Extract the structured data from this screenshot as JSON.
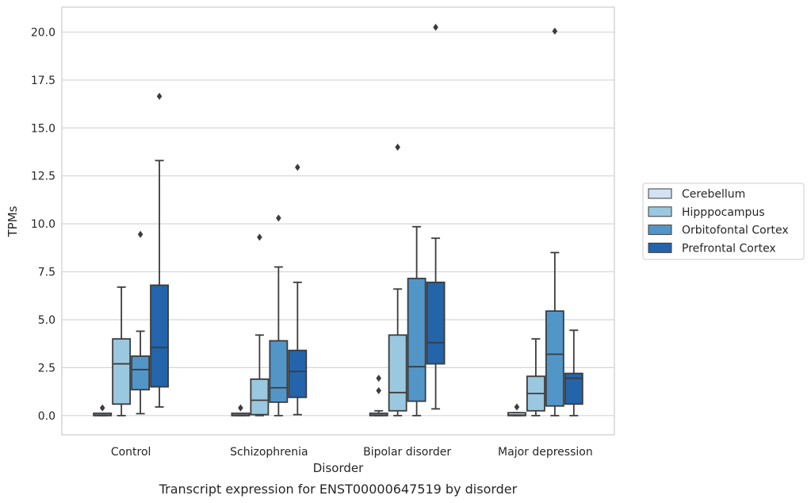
{
  "chart_data": {
    "type": "box",
    "caption": "Transcript expression for ENST00000647519 by disorder",
    "xlabel": "Disorder",
    "ylabel": "TPMs",
    "categories": [
      "Control",
      "Schizophrenia",
      "Bipolar disorder",
      "Major depression"
    ],
    "yticks": [
      "0.0",
      "2.5",
      "5.0",
      "7.5",
      "10.0",
      "12.5",
      "15.0",
      "17.5",
      "20.0"
    ],
    "ylim": [
      -1,
      21.3
    ],
    "grid": "horizontal",
    "legend_position": "right",
    "series": [
      {
        "name": "Cerebellum",
        "color": "#d1e2f2",
        "boxes": [
          {
            "whislo": 0.0,
            "q1": 0.0,
            "med": 0.03,
            "q3": 0.12,
            "whishi": 0.12,
            "fliers": [
              0.4
            ]
          },
          {
            "whislo": 0.0,
            "q1": 0.0,
            "med": 0.03,
            "q3": 0.12,
            "whishi": 0.12,
            "fliers": [
              0.4
            ]
          },
          {
            "whislo": 0.0,
            "q1": 0.0,
            "med": 0.03,
            "q3": 0.12,
            "whishi": 0.25,
            "fliers": [
              1.3,
              1.95
            ]
          },
          {
            "whislo": 0.0,
            "q1": 0.0,
            "med": 0.03,
            "q3": 0.15,
            "whishi": 0.15,
            "fliers": [
              0.45
            ]
          }
        ]
      },
      {
        "name": "Hipppocampus",
        "color": "#9ac8e0",
        "boxes": [
          {
            "whislo": 0.0,
            "q1": 0.6,
            "med": 2.7,
            "q3": 4.0,
            "whishi": 6.7,
            "fliers": []
          },
          {
            "whislo": 0.0,
            "q1": 0.05,
            "med": 0.8,
            "q3": 1.9,
            "whishi": 4.2,
            "fliers": [
              9.3
            ]
          },
          {
            "whislo": 0.0,
            "q1": 0.25,
            "med": 1.2,
            "q3": 4.2,
            "whishi": 6.6,
            "fliers": [
              14.0
            ]
          },
          {
            "whislo": 0.0,
            "q1": 0.25,
            "med": 1.15,
            "q3": 2.05,
            "whishi": 4.0,
            "fliers": []
          }
        ]
      },
      {
        "name": "Orbitofontal Cortex",
        "color": "#5296c8",
        "boxes": [
          {
            "whislo": 0.1,
            "q1": 1.35,
            "med": 2.4,
            "q3": 3.1,
            "whishi": 4.4,
            "fliers": [
              9.45
            ]
          },
          {
            "whislo": 0.0,
            "q1": 0.7,
            "med": 1.45,
            "q3": 3.9,
            "whishi": 7.75,
            "fliers": [
              10.3
            ]
          },
          {
            "whislo": 0.0,
            "q1": 0.75,
            "med": 2.55,
            "q3": 7.15,
            "whishi": 9.85,
            "fliers": []
          },
          {
            "whislo": 0.0,
            "q1": 0.5,
            "med": 3.2,
            "q3": 5.45,
            "whishi": 8.5,
            "fliers": [
              20.05
            ]
          }
        ]
      },
      {
        "name": "Prefrontal Cortex",
        "color": "#2364aa",
        "boxes": [
          {
            "whislo": 0.45,
            "q1": 1.5,
            "med": 3.55,
            "q3": 6.8,
            "whishi": 13.3,
            "fliers": [
              16.65
            ]
          },
          {
            "whislo": 0.05,
            "q1": 0.95,
            "med": 2.3,
            "q3": 3.4,
            "whishi": 6.95,
            "fliers": [
              12.95
            ]
          },
          {
            "whislo": 0.35,
            "q1": 2.7,
            "med": 3.8,
            "q3": 6.95,
            "whishi": 9.25,
            "fliers": [
              20.25
            ]
          },
          {
            "whislo": 0.0,
            "q1": 0.6,
            "med": 1.95,
            "q3": 2.2,
            "whishi": 4.45,
            "fliers": []
          }
        ]
      }
    ]
  }
}
